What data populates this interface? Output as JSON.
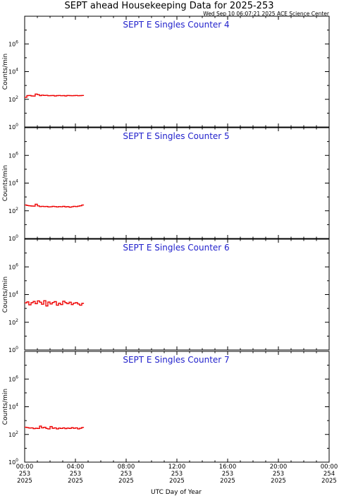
{
  "title": "SEPT ahead Housekeeping Data for 2025-253",
  "timestamp": "Wed Sep 10 06:07:21 2025 ACE Science Center",
  "colors": {
    "trace": "#ee0000",
    "panel_title": "#2222cc",
    "axes": "#000000"
  },
  "chart_data": [
    {
      "type": "line",
      "title": "SEPT E Singles Counter 4",
      "ylabel": "Counts/min",
      "yscale": "log",
      "ylim": [
        1,
        100000000
      ],
      "yticks": [
        "10^0",
        "10^2",
        "10^4",
        "10^6"
      ],
      "xlim_hours": [
        0,
        24
      ],
      "x_hours": [
        0.0,
        0.17,
        0.33,
        0.5,
        0.67,
        0.83,
        1.0,
        1.17,
        1.33,
        1.5,
        1.67,
        1.83,
        2.0,
        2.17,
        2.33,
        2.5,
        2.67,
        2.83,
        3.0,
        3.17,
        3.33,
        3.5,
        3.67,
        3.83,
        4.0,
        4.17,
        4.33,
        4.5
      ],
      "values": [
        140,
        185,
        190,
        175,
        170,
        240,
        215,
        185,
        200,
        190,
        195,
        180,
        185,
        190,
        175,
        185,
        190,
        180,
        185,
        175,
        190,
        185,
        180,
        185,
        190,
        180,
        185,
        190
      ]
    },
    {
      "type": "line",
      "title": "SEPT E Singles Counter 5",
      "ylabel": "Counts/min",
      "yscale": "log",
      "ylim": [
        1,
        100000000
      ],
      "yticks": [
        "10^0",
        "10^2",
        "10^4",
        "10^6"
      ],
      "xlim_hours": [
        0,
        24
      ],
      "x_hours": [
        0.0,
        0.17,
        0.33,
        0.5,
        0.67,
        0.83,
        1.0,
        1.17,
        1.33,
        1.5,
        1.67,
        1.83,
        2.0,
        2.17,
        2.33,
        2.5,
        2.67,
        2.83,
        3.0,
        3.17,
        3.33,
        3.5,
        3.67,
        3.83,
        4.0,
        4.17,
        4.33,
        4.5
      ],
      "values": [
        260,
        240,
        230,
        220,
        215,
        300,
        225,
        200,
        210,
        200,
        205,
        190,
        195,
        210,
        200,
        190,
        200,
        195,
        210,
        190,
        200,
        180,
        195,
        210,
        200,
        215,
        230,
        260
      ]
    },
    {
      "type": "line",
      "title": "SEPT E Singles Counter 6",
      "ylabel": "Counts/min",
      "yscale": "log",
      "ylim": [
        1,
        100000000
      ],
      "yticks": [
        "10^0",
        "10^2",
        "10^4",
        "10^6"
      ],
      "xlim_hours": [
        0,
        24
      ],
      "x_hours": [
        0.0,
        0.17,
        0.33,
        0.5,
        0.67,
        0.83,
        1.0,
        1.17,
        1.33,
        1.5,
        1.67,
        1.83,
        2.0,
        2.17,
        2.33,
        2.5,
        2.67,
        2.83,
        3.0,
        3.17,
        3.33,
        3.5,
        3.67,
        3.83,
        4.0,
        4.17,
        4.33,
        4.5
      ],
      "values": [
        2500,
        3000,
        1800,
        2600,
        3200,
        2200,
        3500,
        2800,
        2000,
        3600,
        1500,
        2900,
        2100,
        2700,
        3100,
        1700,
        2400,
        1900,
        3300,
        2600,
        2200,
        2800,
        1900,
        2400,
        2600,
        2100,
        1700,
        2300
      ]
    },
    {
      "type": "line",
      "title": "SEPT E Singles Counter 7",
      "ylabel": "Counts/min",
      "yscale": "log",
      "ylim": [
        1,
        100000000
      ],
      "yticks": [
        "10^0",
        "10^2",
        "10^4",
        "10^6"
      ],
      "xlim_hours": [
        0,
        24
      ],
      "x_hours": [
        0.0,
        0.17,
        0.33,
        0.5,
        0.67,
        0.83,
        1.0,
        1.17,
        1.33,
        1.5,
        1.67,
        1.83,
        2.0,
        2.17,
        2.33,
        2.5,
        2.67,
        2.83,
        3.0,
        3.17,
        3.33,
        3.5,
        3.67,
        3.83,
        4.0,
        4.17,
        4.33,
        4.5
      ],
      "values": [
        330,
        310,
        290,
        300,
        260,
        280,
        270,
        400,
        300,
        330,
        270,
        250,
        370,
        280,
        300,
        250,
        290,
        270,
        300,
        260,
        290,
        270,
        310,
        280,
        300,
        250,
        280,
        320
      ]
    }
  ],
  "x_axis": {
    "label": "UTC Day of Year",
    "ticks": [
      {
        "hour": 0,
        "time": "00:00",
        "doy": "253",
        "year": "2025"
      },
      {
        "hour": 4,
        "time": "04:00",
        "doy": "253",
        "year": "2025"
      },
      {
        "hour": 8,
        "time": "08:00",
        "doy": "253",
        "year": "2025"
      },
      {
        "hour": 12,
        "time": "12:00",
        "doy": "253",
        "year": "2025"
      },
      {
        "hour": 16,
        "time": "16:00",
        "doy": "253",
        "year": "2025"
      },
      {
        "hour": 20,
        "time": "20:00",
        "doy": "253",
        "year": "2025"
      },
      {
        "hour": 24,
        "time": "00:00",
        "doy": "254",
        "year": "2025"
      }
    ]
  }
}
